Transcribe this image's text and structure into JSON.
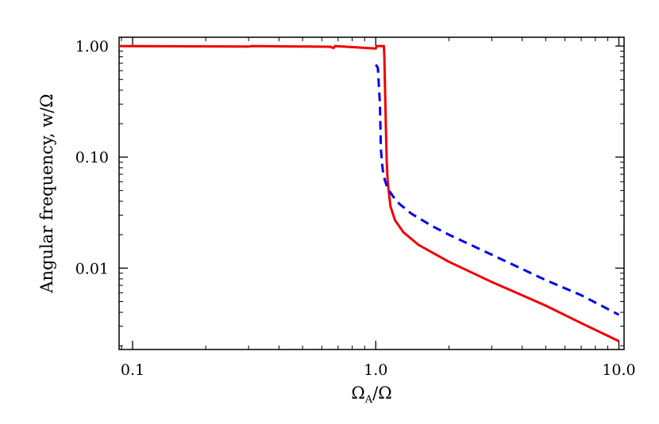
{
  "chart_data": {
    "type": "line",
    "xscale": "log",
    "yscale": "log",
    "xlim": [
      0.088,
      10.5
    ],
    "ylim": [
      0.00185,
      1.2
    ],
    "xticks": [
      {
        "value": 0.1,
        "label": "0.1"
      },
      {
        "value": 1.0,
        "label": "1.0"
      },
      {
        "value": 10.0,
        "label": "10.0"
      }
    ],
    "yticks": [
      {
        "value": 1.0,
        "label": "1.00"
      },
      {
        "value": 0.1,
        "label": "0.10"
      },
      {
        "value": 0.01,
        "label": "0.01"
      }
    ],
    "xlabel": "Ω_A/Ω",
    "xlabel_main": "Ω",
    "xlabel_sub": "A",
    "xlabel_rest": "/Ω",
    "ylabel": "Angular frequency, w/Ω",
    "grid": false,
    "series": [
      {
        "color": "#ee0000",
        "dash": "solid",
        "x": [
          0.088,
          0.3,
          0.31,
          0.65,
          0.67,
          0.68,
          1.0,
          1.01,
          1.05,
          1.08,
          1.085,
          1.09,
          1.1,
          1.11,
          1.12,
          1.15,
          1.2,
          1.3,
          1.5,
          2.0,
          3.0,
          5.0,
          7.0,
          10.0
        ],
        "y": [
          1.0,
          0.99,
          1.0,
          0.985,
          0.96,
          1.0,
          0.95,
          1.0,
          1.0,
          1.0,
          0.8,
          0.5,
          0.2,
          0.09,
          0.06,
          0.036,
          0.027,
          0.021,
          0.0162,
          0.0114,
          0.0075,
          0.0046,
          0.0032,
          0.0022
        ]
      },
      {
        "color": "#0000ee",
        "dash": "dashed",
        "x": [
          1.0,
          1.02,
          1.04,
          1.05,
          1.06,
          1.07,
          1.09,
          1.12,
          1.18,
          1.25,
          1.4,
          1.7,
          2.0,
          3.0,
          5.0,
          7.0,
          10.0
        ],
        "y": [
          0.68,
          0.64,
          0.3,
          0.12,
          0.09,
          0.075,
          0.062,
          0.052,
          0.044,
          0.038,
          0.031,
          0.024,
          0.02,
          0.0132,
          0.0078,
          0.0057,
          0.0038
        ]
      }
    ]
  }
}
